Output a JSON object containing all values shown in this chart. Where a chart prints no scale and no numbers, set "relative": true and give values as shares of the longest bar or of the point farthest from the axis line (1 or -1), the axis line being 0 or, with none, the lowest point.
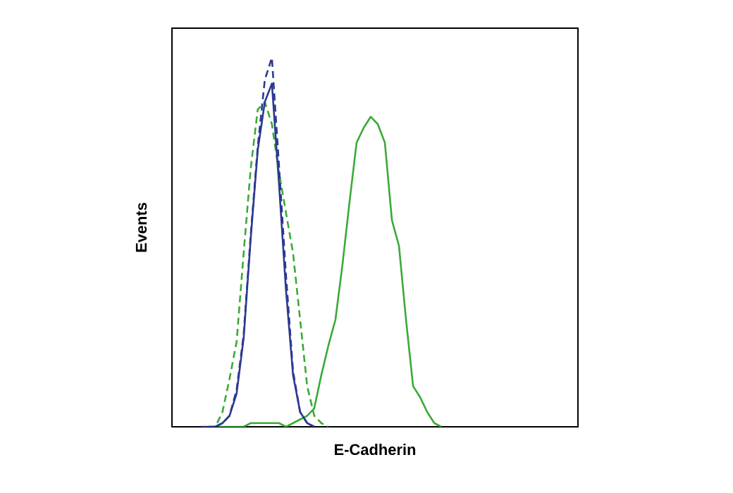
{
  "chart_data": {
    "type": "line",
    "xlabel": "E-Cadherin",
    "ylabel": "Events",
    "relative": true,
    "categories": [
      null,
      null,
      null,
      null,
      null,
      null,
      null,
      null,
      null,
      null,
      null,
      null,
      null,
      null,
      null,
      null,
      null,
      null,
      null,
      null,
      null,
      null,
      null,
      null,
      null,
      null,
      null,
      null,
      null,
      null,
      null,
      null,
      null,
      null,
      null,
      null,
      null,
      null,
      null,
      null,
      null,
      null,
      null,
      null,
      null,
      null,
      null,
      null,
      null,
      null,
      null,
      null,
      null,
      null,
      null,
      null,
      null,
      null
    ],
    "series": [
      {
        "color": "#3aaa35",
        "line_style": "solid",
        "values": [
          null,
          null,
          null,
          null,
          null,
          0,
          0,
          0,
          0,
          0,
          0,
          0.01,
          0.01,
          0.01,
          0.01,
          0.01,
          0,
          0.01,
          0.02,
          0.03,
          0.05,
          0.14,
          0.22,
          0.29,
          0.44,
          0.61,
          0.77,
          0.81,
          0.84,
          0.82,
          0.77,
          0.56,
          0.49,
          0.29,
          0.11,
          0.08,
          0.04,
          0.01,
          0,
          null,
          null,
          null,
          null,
          null,
          null,
          null,
          null,
          null,
          null,
          null,
          null,
          null,
          null,
          null,
          null,
          null,
          null,
          null
        ]
      },
      {
        "color": "#3aaa35",
        "line_style": "dashed",
        "values": [
          null,
          null,
          null,
          null,
          null,
          0,
          0,
          0.04,
          0.13,
          0.23,
          0.47,
          0.7,
          0.86,
          0.88,
          0.82,
          0.69,
          0.58,
          0.47,
          0.29,
          0.11,
          0.03,
          0.01,
          0,
          null,
          null,
          null,
          null,
          null,
          null,
          null,
          null,
          null,
          null,
          null,
          null,
          null,
          null,
          null,
          null,
          null,
          null,
          null,
          null,
          null,
          null,
          null,
          null,
          null,
          null,
          null,
          null,
          null,
          null,
          null,
          null,
          null,
          null,
          null
        ]
      },
      {
        "color": "#2b3990",
        "line_style": "dashed",
        "values": [
          null,
          null,
          null,
          null,
          null,
          null,
          0,
          0.01,
          0.03,
          0.1,
          0.25,
          0.52,
          0.76,
          0.94,
          1,
          0.71,
          0.41,
          0.15,
          0.04,
          0.01,
          0,
          null,
          null,
          null,
          null,
          null,
          null,
          null,
          null,
          null,
          null,
          null,
          null,
          null,
          null,
          null,
          null,
          null,
          null,
          null,
          null,
          null,
          null,
          null,
          null,
          null,
          null,
          null,
          null,
          null,
          null,
          null,
          null,
          null,
          null,
          null,
          null,
          null
        ]
      },
      {
        "color": "#2b3990",
        "line_style": "solid",
        "values": [
          null,
          null,
          null,
          null,
          0,
          0,
          0,
          0.01,
          0.03,
          0.09,
          0.24,
          0.51,
          0.75,
          0.88,
          0.93,
          0.66,
          0.37,
          0.14,
          0.04,
          0.01,
          0,
          null,
          null,
          null,
          null,
          null,
          null,
          null,
          null,
          null,
          null,
          null,
          null,
          null,
          null,
          null,
          null,
          null,
          null,
          null,
          null,
          null,
          null,
          null,
          null,
          null,
          null,
          null,
          null,
          null,
          null,
          null,
          null,
          null,
          null,
          null,
          null,
          null
        ]
      }
    ]
  }
}
